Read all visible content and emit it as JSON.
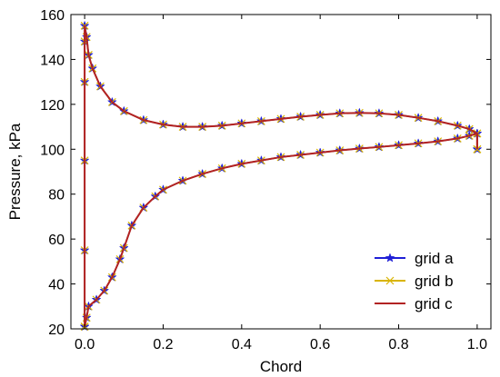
{
  "chart_data": {
    "type": "line",
    "title": "",
    "xlabel": "Chord",
    "ylabel": "Pressure, kPa",
    "xlim": [
      -0.035,
      1.035
    ],
    "ylim": [
      20,
      160
    ],
    "xticks": [
      0.0,
      0.2,
      0.4,
      0.6,
      0.8,
      1.0
    ],
    "xtick_labels": [
      "0.0",
      "0.2",
      "0.4",
      "0.6",
      "0.8",
      "1.0"
    ],
    "yticks": [
      20,
      40,
      60,
      80,
      100,
      120,
      140,
      160
    ],
    "ytick_labels": [
      "20",
      "40",
      "60",
      "80",
      "100",
      "120",
      "140",
      "160"
    ],
    "grid": false,
    "legend_position": "bottom-right",
    "series": [
      {
        "name": "grid a",
        "color": "#1f1fd6",
        "marker": "star",
        "upper": [
          [
            0.0,
            21
          ],
          [
            0.0,
            55
          ],
          [
            0.0,
            95
          ],
          [
            0.0,
            130
          ],
          [
            0.0,
            148
          ],
          [
            0.0,
            155
          ],
          [
            0.005,
            150
          ],
          [
            0.01,
            142
          ],
          [
            0.02,
            136
          ],
          [
            0.04,
            128
          ],
          [
            0.07,
            121
          ],
          [
            0.1,
            117
          ],
          [
            0.15,
            113
          ],
          [
            0.2,
            111
          ],
          [
            0.25,
            110
          ],
          [
            0.3,
            110
          ],
          [
            0.35,
            110.5
          ],
          [
            0.4,
            111.5
          ],
          [
            0.45,
            112.5
          ],
          [
            0.5,
            113.5
          ],
          [
            0.55,
            114.5
          ],
          [
            0.6,
            115.3
          ],
          [
            0.65,
            116
          ],
          [
            0.7,
            116.2
          ],
          [
            0.75,
            116
          ],
          [
            0.8,
            115.3
          ],
          [
            0.85,
            114
          ],
          [
            0.9,
            112.5
          ],
          [
            0.95,
            110.5
          ],
          [
            0.98,
            109
          ],
          [
            1.0,
            107
          ],
          [
            1.0,
            100
          ]
        ],
        "lower": [
          [
            0.0,
            21
          ],
          [
            0.005,
            25
          ],
          [
            0.01,
            30
          ],
          [
            0.03,
            33
          ],
          [
            0.05,
            37
          ],
          [
            0.07,
            43
          ],
          [
            0.09,
            51
          ],
          [
            0.1,
            56
          ],
          [
            0.12,
            66
          ],
          [
            0.15,
            74
          ],
          [
            0.18,
            79
          ],
          [
            0.2,
            82
          ],
          [
            0.25,
            86
          ],
          [
            0.3,
            89
          ],
          [
            0.35,
            91.5
          ],
          [
            0.4,
            93.5
          ],
          [
            0.45,
            95
          ],
          [
            0.5,
            96.5
          ],
          [
            0.55,
            97.5
          ],
          [
            0.6,
            98.5
          ],
          [
            0.65,
            99.5
          ],
          [
            0.7,
            100.3
          ],
          [
            0.75,
            101
          ],
          [
            0.8,
            101.8
          ],
          [
            0.85,
            102.6
          ],
          [
            0.9,
            103.5
          ],
          [
            0.95,
            104.8
          ],
          [
            0.98,
            106
          ],
          [
            1.0,
            107
          ],
          [
            1.0,
            100
          ]
        ]
      },
      {
        "name": "grid b",
        "color": "#d9b400",
        "marker": "x",
        "upper": [
          [
            0.0,
            21
          ],
          [
            0.0,
            55
          ],
          [
            0.0,
            95
          ],
          [
            0.0,
            130
          ],
          [
            0.0,
            148
          ],
          [
            0.0,
            155
          ],
          [
            0.005,
            150
          ],
          [
            0.01,
            142
          ],
          [
            0.02,
            136
          ],
          [
            0.04,
            128
          ],
          [
            0.07,
            121
          ],
          [
            0.1,
            117
          ],
          [
            0.15,
            113
          ],
          [
            0.2,
            111
          ],
          [
            0.25,
            110
          ],
          [
            0.3,
            110
          ],
          [
            0.35,
            110.5
          ],
          [
            0.4,
            111.5
          ],
          [
            0.45,
            112.5
          ],
          [
            0.5,
            113.5
          ],
          [
            0.55,
            114.5
          ],
          [
            0.6,
            115.3
          ],
          [
            0.65,
            116
          ],
          [
            0.7,
            116.2
          ],
          [
            0.75,
            116
          ],
          [
            0.8,
            115.3
          ],
          [
            0.85,
            114
          ],
          [
            0.9,
            112.5
          ],
          [
            0.95,
            110.5
          ],
          [
            0.98,
            109
          ],
          [
            1.0,
            107
          ],
          [
            1.0,
            100
          ]
        ],
        "lower": [
          [
            0.0,
            21
          ],
          [
            0.005,
            25
          ],
          [
            0.01,
            30
          ],
          [
            0.03,
            33
          ],
          [
            0.05,
            37
          ],
          [
            0.07,
            43
          ],
          [
            0.09,
            51
          ],
          [
            0.1,
            56
          ],
          [
            0.12,
            66
          ],
          [
            0.15,
            74
          ],
          [
            0.18,
            79
          ],
          [
            0.2,
            82
          ],
          [
            0.25,
            86
          ],
          [
            0.3,
            89
          ],
          [
            0.35,
            91.5
          ],
          [
            0.4,
            93.5
          ],
          [
            0.45,
            95
          ],
          [
            0.5,
            96.5
          ],
          [
            0.55,
            97.5
          ],
          [
            0.6,
            98.5
          ],
          [
            0.65,
            99.5
          ],
          [
            0.7,
            100.3
          ],
          [
            0.75,
            101
          ],
          [
            0.8,
            101.8
          ],
          [
            0.85,
            102.6
          ],
          [
            0.9,
            103.5
          ],
          [
            0.95,
            104.8
          ],
          [
            0.98,
            106
          ],
          [
            1.0,
            107
          ],
          [
            1.0,
            100
          ]
        ]
      },
      {
        "name": "grid c",
        "color": "#b22222",
        "marker": "none",
        "upper": [
          [
            0.0,
            21
          ],
          [
            0.0,
            55
          ],
          [
            0.0,
            95
          ],
          [
            0.0,
            130
          ],
          [
            0.0,
            148
          ],
          [
            0.0,
            155
          ],
          [
            0.005,
            150
          ],
          [
            0.01,
            142
          ],
          [
            0.02,
            136
          ],
          [
            0.04,
            128
          ],
          [
            0.07,
            121
          ],
          [
            0.1,
            117
          ],
          [
            0.15,
            113
          ],
          [
            0.2,
            111
          ],
          [
            0.25,
            110
          ],
          [
            0.3,
            110
          ],
          [
            0.35,
            110.5
          ],
          [
            0.4,
            111.5
          ],
          [
            0.45,
            112.5
          ],
          [
            0.5,
            113.5
          ],
          [
            0.55,
            114.5
          ],
          [
            0.6,
            115.3
          ],
          [
            0.65,
            116
          ],
          [
            0.7,
            116.2
          ],
          [
            0.75,
            116
          ],
          [
            0.8,
            115.3
          ],
          [
            0.85,
            114
          ],
          [
            0.9,
            112.5
          ],
          [
            0.95,
            110.5
          ],
          [
            0.98,
            109
          ],
          [
            1.0,
            107
          ],
          [
            1.0,
            100
          ]
        ],
        "lower": [
          [
            0.0,
            21
          ],
          [
            0.005,
            25
          ],
          [
            0.01,
            30
          ],
          [
            0.03,
            33
          ],
          [
            0.05,
            37
          ],
          [
            0.07,
            43
          ],
          [
            0.09,
            51
          ],
          [
            0.1,
            56
          ],
          [
            0.12,
            66
          ],
          [
            0.15,
            74
          ],
          [
            0.18,
            79
          ],
          [
            0.2,
            82
          ],
          [
            0.25,
            86
          ],
          [
            0.3,
            89
          ],
          [
            0.35,
            91.5
          ],
          [
            0.4,
            93.5
          ],
          [
            0.45,
            95
          ],
          [
            0.5,
            96.5
          ],
          [
            0.55,
            97.5
          ],
          [
            0.6,
            98.5
          ],
          [
            0.65,
            99.5
          ],
          [
            0.7,
            100.3
          ],
          [
            0.75,
            101
          ],
          [
            0.8,
            101.8
          ],
          [
            0.85,
            102.6
          ],
          [
            0.9,
            103.5
          ],
          [
            0.95,
            104.8
          ],
          [
            0.98,
            106
          ],
          [
            1.0,
            107
          ],
          [
            1.0,
            100
          ]
        ]
      }
    ]
  }
}
